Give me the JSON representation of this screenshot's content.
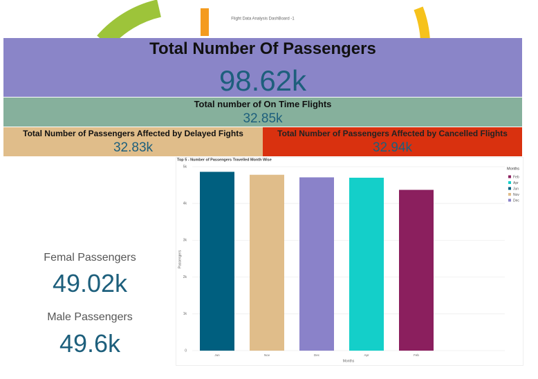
{
  "header": {
    "title": "Flight Data Analysis DashBoard -1"
  },
  "kpis": {
    "total": {
      "label": "Total Number Of Passengers",
      "value": "98.62k"
    },
    "on_time": {
      "label": "Total number of On Time Flights",
      "value": "32.85k"
    },
    "delayed": {
      "label": "Total Number of Passengers Affected by Delayed Fights",
      "value": "32.83k"
    },
    "cancelled": {
      "label": "Total Number of Passengers Affected by Cancelled Flights",
      "value": "32.94k"
    },
    "female": {
      "label": "Femal Passengers",
      "value": "49.02k"
    },
    "male": {
      "label": "Male Passengers",
      "value": "49.6k"
    }
  },
  "chart_data": {
    "type": "bar",
    "title": "Top 5 - Number of Passengers Travelled Month Wise",
    "x_label": "Months",
    "y_label": "Passengers",
    "categories": [
      "Jun",
      "Nov",
      "Dec",
      "Apr",
      "Feb"
    ],
    "values": [
      4860,
      4780,
      4710,
      4700,
      4370
    ],
    "colors": [
      "#005f7f",
      "#e0bd8a",
      "#8a82c9",
      "#14cfc9",
      "#8b1f5e"
    ],
    "ylim": [
      0,
      5000
    ],
    "yticks": [
      0,
      {
        "value": 1000,
        "label": "1k"
      },
      {
        "value": 2000,
        "label": "2k"
      },
      {
        "value": 3000,
        "label": "3k"
      },
      {
        "value": 4000,
        "label": "4k"
      },
      {
        "value": 5000,
        "label": "5k"
      }
    ],
    "grid": true,
    "legend": {
      "title": "Months",
      "position": "right",
      "entries": [
        {
          "name": "Feb",
          "color": "#8b1f5e"
        },
        {
          "name": "Apr",
          "color": "#14cfc9"
        },
        {
          "name": "Jun",
          "color": "#005f7f"
        },
        {
          "name": "Nov",
          "color": "#e0bd8a"
        },
        {
          "name": "Dec",
          "color": "#8a82c9"
        }
      ]
    }
  }
}
